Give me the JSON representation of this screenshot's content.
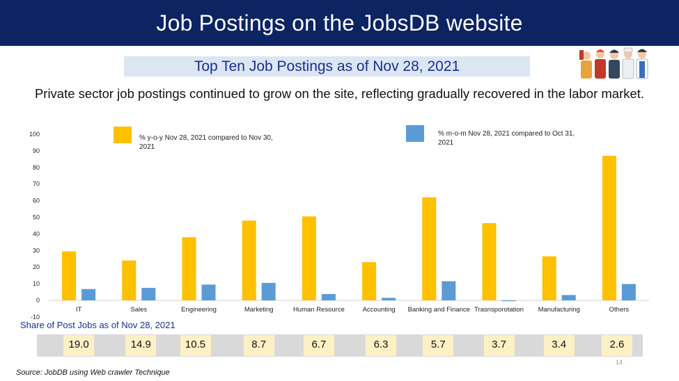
{
  "header": {
    "title": "Job Postings on the JobsDB website"
  },
  "subtitle": "Top Ten Job Postings as of Nov 28, 2021",
  "description": "Private sector job postings continued to grow on the site, reflecting gradually recovered in the labor market.",
  "colors": {
    "yoy": "#ffc000",
    "mom": "#5b9bd5",
    "header_bg": "#0c2461",
    "subtitle_bg": "#dce6f2"
  },
  "chart_data": {
    "type": "bar",
    "categories": [
      "IT",
      "Sales",
      "Engineering",
      "Marketing",
      "Human Resource",
      "Accounting",
      "Banking and Finance",
      "Trasnsporotation",
      "Manufacturing",
      "Others"
    ],
    "series": [
      {
        "name": "% y-o-y Nov 28, 2021 compared to Nov 30, 2021",
        "values": [
          29.5,
          24,
          38,
          48,
          50.5,
          23,
          62,
          46.5,
          26.5,
          87
        ]
      },
      {
        "name": "% m-o-m Nov 28, 2021 compared to Oct 31, 2021",
        "values": [
          6.8,
          7.5,
          9.5,
          10.5,
          3.8,
          1.5,
          11.5,
          -0.5,
          3.2,
          9.8
        ]
      }
    ],
    "ylim": [
      -10,
      100
    ],
    "yticks": [
      "100",
      "90",
      "80",
      "70",
      "60",
      "50",
      "40",
      "30",
      "20",
      "10",
      "0",
      "-10"
    ],
    "grid": false,
    "legend_position": "top"
  },
  "share": {
    "title": "Share of Post Jobs as of Nov 28,  2021",
    "values": [
      "19.0",
      "14.9",
      "10.5",
      "8.7",
      "6.7",
      "6.3",
      "5.7",
      "3.7",
      "3.4",
      "2.6"
    ]
  },
  "page_number": "14",
  "source": "Source: JobDB using Web crawler Technique",
  "icons": {
    "workers": "workers-illustration-icon"
  }
}
